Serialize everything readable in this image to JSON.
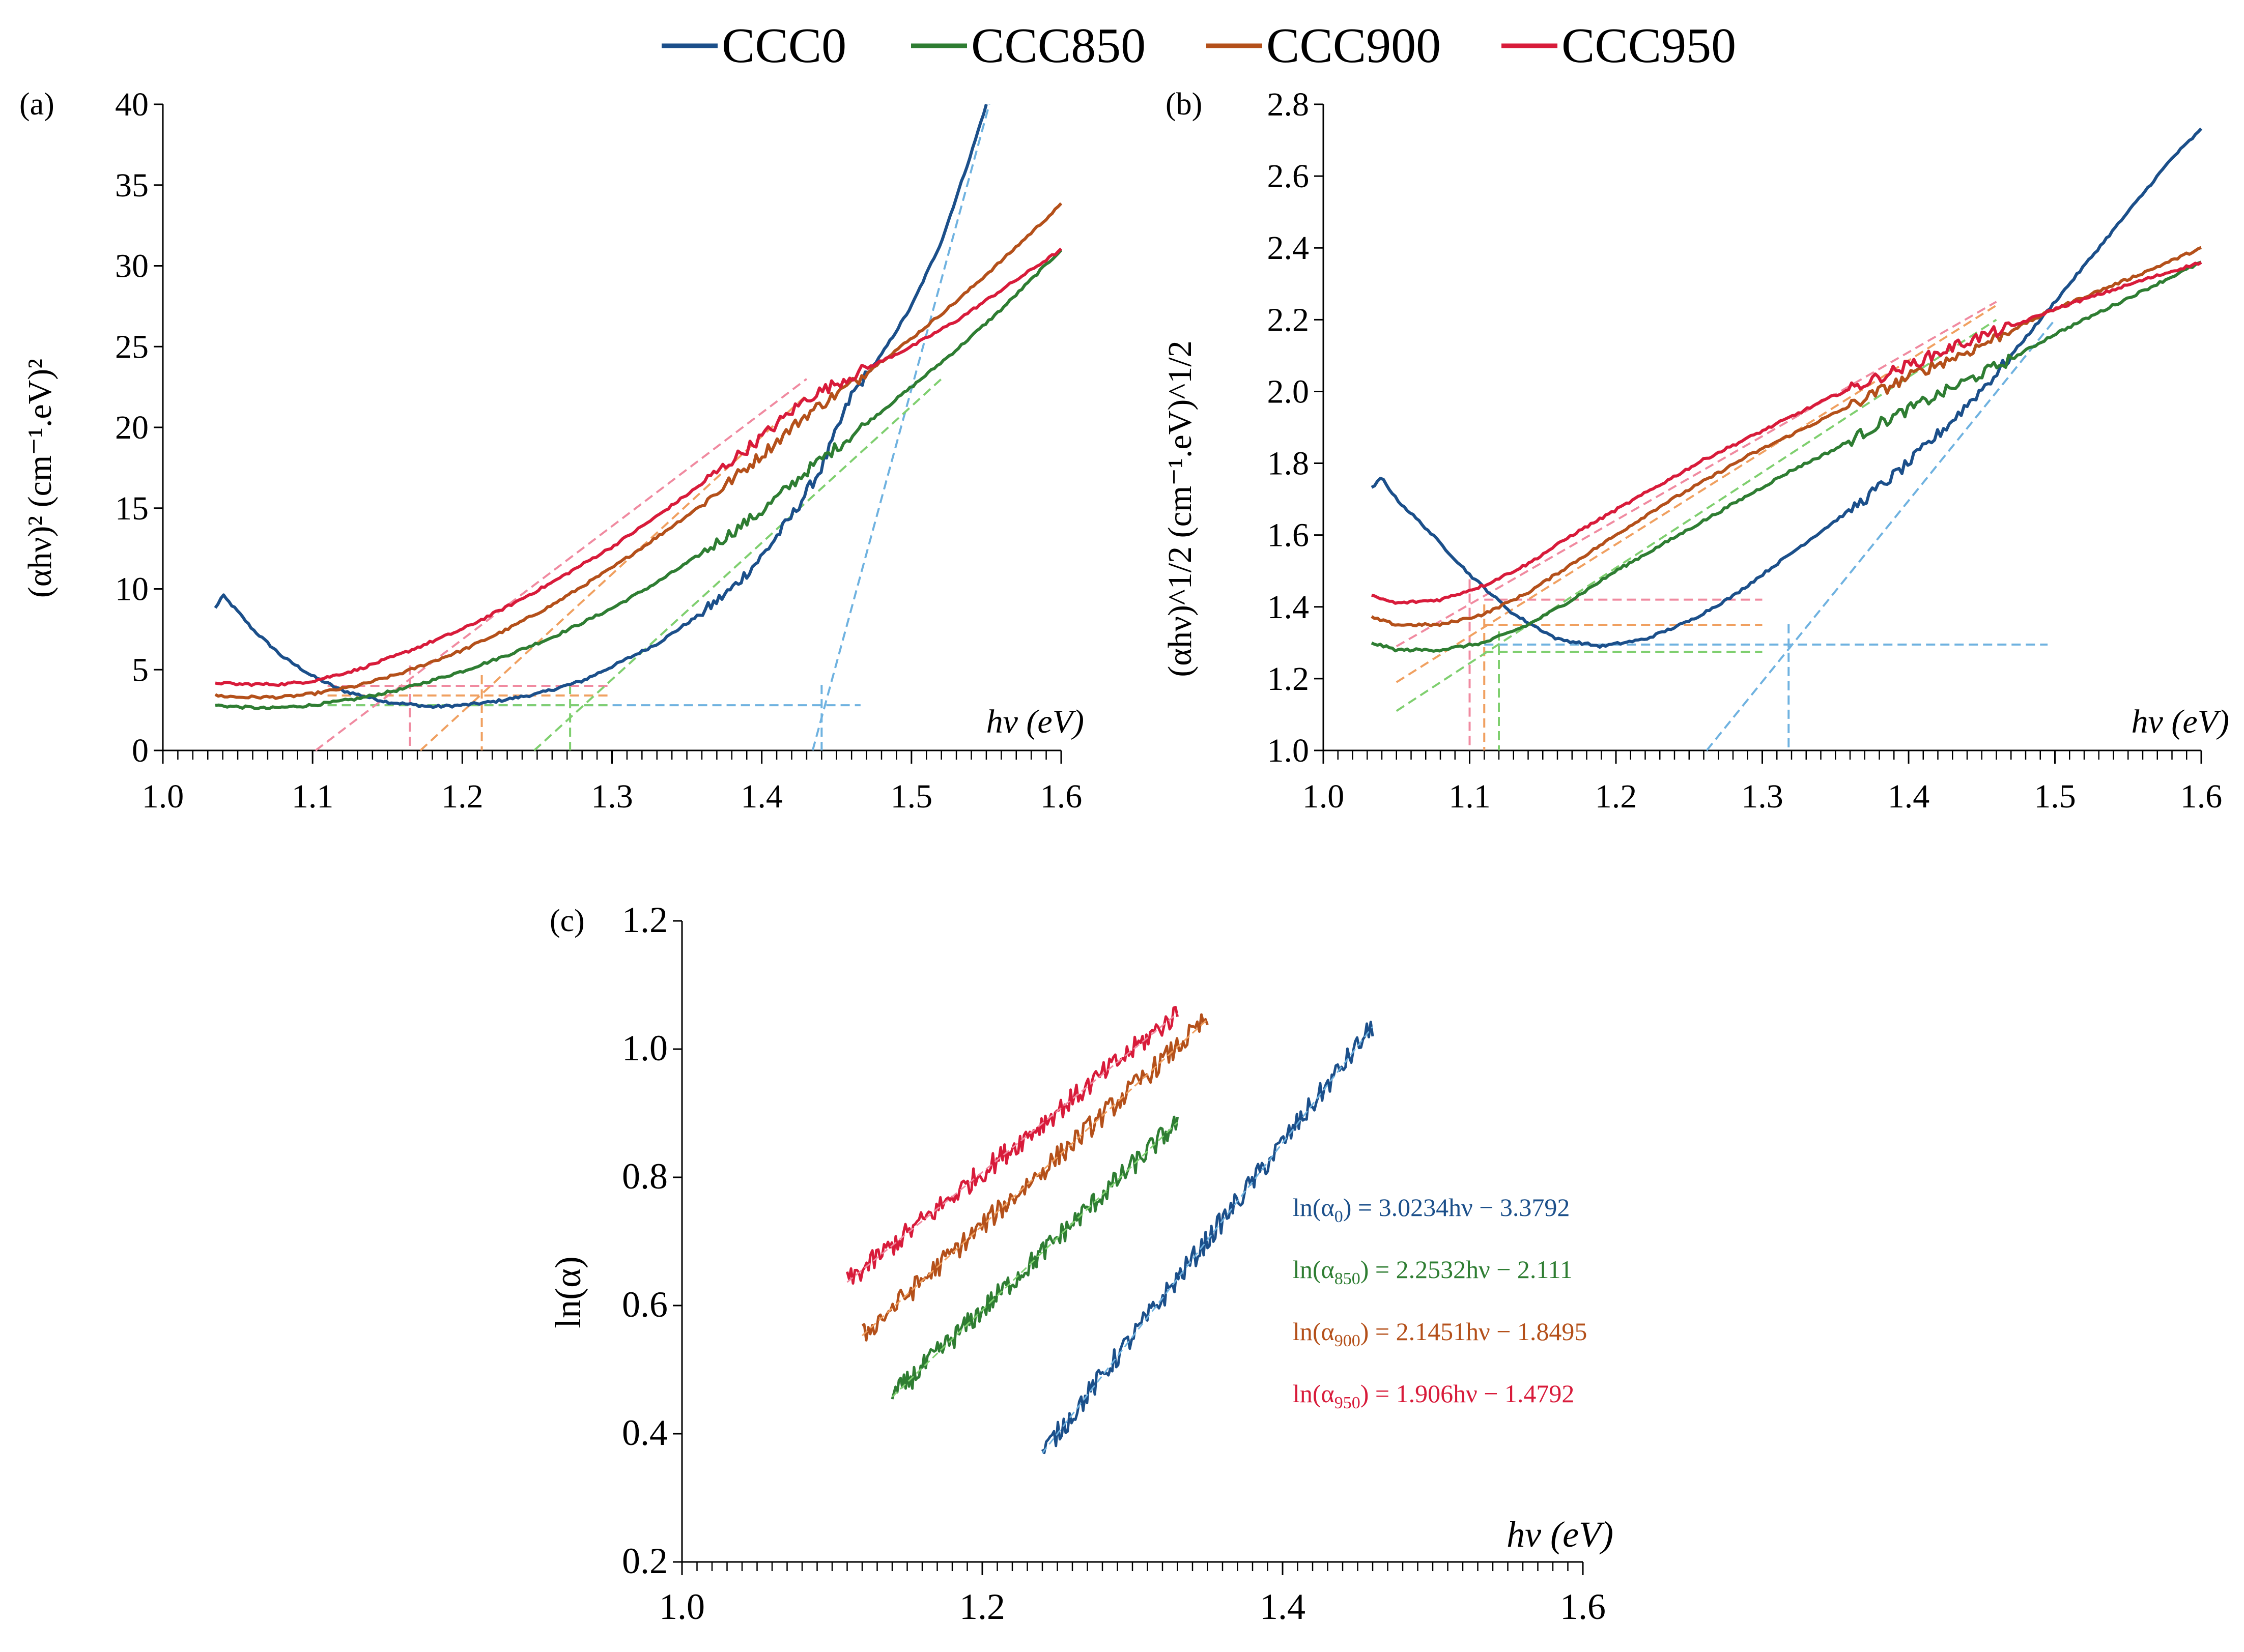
{
  "legend": {
    "entries": [
      {
        "name": "CCC0",
        "color": "#1b4f8a"
      },
      {
        "name": "CCC850",
        "color": "#2e7d32"
      },
      {
        "name": "CCC900",
        "color": "#b4501a"
      },
      {
        "name": "CCC950",
        "color": "#d81b3a"
      }
    ]
  },
  "colors": {
    "CCC0": "#1b4f8a",
    "CCC850": "#2e7d32",
    "CCC900": "#b4501a",
    "CCC950": "#d81b3a",
    "fit_CCC0": "#6fb2e0",
    "fit_CCC850": "#7fcf6f",
    "fit_CCC900": "#f0a060",
    "fit_CCC950": "#f08aa0"
  },
  "chart_data": [
    {
      "id": "a",
      "panel_label": "(a)",
      "type": "line",
      "xlabel": "hν (eV)",
      "ylabel": "(αhν)² (cm⁻¹.eV)²",
      "xlim": [
        1.0,
        1.6
      ],
      "ylim": [
        0,
        40
      ],
      "x_ticks": [
        "1.0",
        "1.1",
        "1.2",
        "1.3",
        "1.4",
        "1.5",
        "1.6"
      ],
      "x_tick_values": [
        1.0,
        1.1,
        1.2,
        1.3,
        1.4,
        1.5,
        1.6
      ],
      "y_ticks": [
        "0",
        "5",
        "10",
        "15",
        "20",
        "25",
        "30",
        "35",
        "40"
      ],
      "y_tick_values": [
        0,
        5,
        10,
        15,
        20,
        25,
        30,
        35,
        40
      ],
      "series": [
        {
          "name": "CCC0",
          "x": [
            1.035,
            1.04,
            1.05,
            1.06,
            1.08,
            1.1,
            1.12,
            1.15,
            1.18,
            1.2,
            1.22,
            1.25,
            1.28,
            1.3,
            1.33,
            1.36,
            1.38,
            1.4,
            1.42,
            1.44,
            1.46,
            1.48,
            1.5,
            1.52,
            1.54,
            1.55
          ],
          "y": [
            8.8,
            9.6,
            8.6,
            7.5,
            5.8,
            4.6,
            3.7,
            3.0,
            2.7,
            2.8,
            3.0,
            3.5,
            4.3,
            5.2,
            6.6,
            8.5,
            10.0,
            12.0,
            14.5,
            17.5,
            22.0,
            24.5,
            27.5,
            31.5,
            37.0,
            40.0
          ]
        },
        {
          "name": "CCC850",
          "x": [
            1.035,
            1.05,
            1.07,
            1.1,
            1.13,
            1.16,
            1.2,
            1.23,
            1.26,
            1.3,
            1.33,
            1.36,
            1.4,
            1.43,
            1.46,
            1.5,
            1.53,
            1.56,
            1.6
          ],
          "y": [
            2.8,
            2.7,
            2.6,
            2.8,
            3.2,
            3.8,
            4.9,
            5.9,
            7.0,
            8.8,
            10.4,
            12.2,
            14.8,
            17.3,
            19.5,
            22.5,
            24.8,
            27.3,
            31.0
          ]
        },
        {
          "name": "CCC900",
          "x": [
            1.035,
            1.05,
            1.08,
            1.1,
            1.13,
            1.16,
            1.2,
            1.23,
            1.26,
            1.3,
            1.33,
            1.36,
            1.4,
            1.43,
            1.46,
            1.5,
            1.53,
            1.56,
            1.6
          ],
          "y": [
            3.4,
            3.3,
            3.3,
            3.5,
            4.0,
            4.8,
            6.2,
            7.5,
            9.0,
            11.3,
            13.2,
            15.2,
            18.3,
            20.8,
            22.7,
            25.5,
            27.8,
            30.3,
            33.8
          ]
        },
        {
          "name": "CCC950",
          "x": [
            1.035,
            1.05,
            1.08,
            1.1,
            1.13,
            1.16,
            1.2,
            1.23,
            1.26,
            1.3,
            1.33,
            1.36,
            1.4,
            1.43,
            1.46,
            1.5,
            1.53,
            1.56,
            1.6
          ],
          "y": [
            4.2,
            4.1,
            4.1,
            4.3,
            5.0,
            6.0,
            7.5,
            8.9,
            10.4,
            12.6,
            14.5,
            16.5,
            19.4,
            21.8,
            23.2,
            25.0,
            26.6,
            28.5,
            31.0
          ]
        }
      ],
      "fit_lines": [
        {
          "name": "CCC0",
          "x": [
            1.434,
            1.552
          ],
          "y": [
            0,
            40
          ]
        },
        {
          "name": "CCC850",
          "x": [
            1.248,
            1.52
          ],
          "y": [
            0,
            23
          ]
        },
        {
          "name": "CCC900",
          "x": [
            1.172,
            1.43
          ],
          "y": [
            0,
            22
          ]
        },
        {
          "name": "CCC950",
          "x": [
            1.102,
            1.43
          ],
          "y": [
            0,
            23
          ]
        }
      ],
      "guide_lines": [
        {
          "name": "CCC0",
          "gap": 1.44,
          "level": 2.8,
          "x_end": 1.466
        },
        {
          "name": "CCC850",
          "gap": 1.272,
          "level": 2.8,
          "x_end": 1.3
        },
        {
          "name": "CCC900",
          "gap": 1.213,
          "level": 3.4,
          "x_end": 1.3
        },
        {
          "name": "CCC950",
          "gap": 1.165,
          "level": 4.0,
          "x_end": 1.3
        }
      ]
    },
    {
      "id": "b",
      "panel_label": "(b)",
      "type": "line",
      "xlabel": "hν (eV)",
      "ylabel": "(αhν)^1/2 (cm⁻¹.eV)^1/2",
      "xlim": [
        1.0,
        1.6
      ],
      "ylim": [
        1.0,
        2.8
      ],
      "x_ticks": [
        "1.0",
        "1.1",
        "1.2",
        "1.3",
        "1.4",
        "1.5",
        "1.6"
      ],
      "x_tick_values": [
        1.0,
        1.1,
        1.2,
        1.3,
        1.4,
        1.5,
        1.6
      ],
      "y_ticks": [
        "1.0",
        "1.2",
        "1.4",
        "1.6",
        "1.8",
        "2.0",
        "2.2",
        "2.4",
        "2.6",
        "2.8"
      ],
      "y_tick_values": [
        1.0,
        1.2,
        1.4,
        1.6,
        1.8,
        2.0,
        2.2,
        2.4,
        2.6,
        2.8
      ],
      "series": [
        {
          "name": "CCC0",
          "x": [
            1.033,
            1.04,
            1.05,
            1.07,
            1.1,
            1.13,
            1.16,
            1.19,
            1.22,
            1.25,
            1.28,
            1.31,
            1.34,
            1.37,
            1.4,
            1.43,
            1.46,
            1.5,
            1.54,
            1.58,
            1.6
          ],
          "y": [
            1.73,
            1.76,
            1.7,
            1.62,
            1.49,
            1.38,
            1.31,
            1.29,
            1.31,
            1.36,
            1.43,
            1.52,
            1.61,
            1.7,
            1.8,
            1.92,
            2.05,
            2.25,
            2.45,
            2.65,
            2.73
          ]
        },
        {
          "name": "CCC850",
          "x": [
            1.033,
            1.05,
            1.08,
            1.11,
            1.14,
            1.17,
            1.2,
            1.23,
            1.26,
            1.29,
            1.32,
            1.35,
            1.38,
            1.41,
            1.44,
            1.47,
            1.5,
            1.53,
            1.56,
            1.6
          ],
          "y": [
            1.3,
            1.28,
            1.28,
            1.3,
            1.35,
            1.42,
            1.5,
            1.57,
            1.64,
            1.71,
            1.78,
            1.84,
            1.91,
            1.97,
            2.03,
            2.09,
            2.16,
            2.22,
            2.28,
            2.36
          ]
        },
        {
          "name": "CCC900",
          "x": [
            1.033,
            1.05,
            1.08,
            1.11,
            1.14,
            1.17,
            1.2,
            1.23,
            1.26,
            1.29,
            1.32,
            1.35,
            1.38,
            1.41,
            1.44,
            1.47,
            1.5,
            1.53,
            1.56,
            1.6
          ],
          "y": [
            1.37,
            1.35,
            1.35,
            1.38,
            1.44,
            1.52,
            1.6,
            1.68,
            1.75,
            1.82,
            1.88,
            1.94,
            2.0,
            2.06,
            2.11,
            2.17,
            2.23,
            2.28,
            2.33,
            2.4
          ]
        },
        {
          "name": "CCC950",
          "x": [
            1.033,
            1.05,
            1.08,
            1.11,
            1.14,
            1.17,
            1.2,
            1.23,
            1.26,
            1.29,
            1.32,
            1.35,
            1.38,
            1.41,
            1.44,
            1.47,
            1.5,
            1.53,
            1.56,
            1.6
          ],
          "y": [
            1.43,
            1.41,
            1.42,
            1.46,
            1.52,
            1.6,
            1.67,
            1.74,
            1.81,
            1.87,
            1.93,
            1.99,
            2.04,
            2.09,
            2.14,
            2.18,
            2.23,
            2.27,
            2.31,
            2.36
          ]
        }
      ],
      "fit_lines": [
        {
          "name": "CCC0",
          "x": [
            1.262,
            1.5
          ],
          "y": [
            1.0,
            2.2
          ]
        },
        {
          "name": "CCC850",
          "x": [
            1.05,
            1.46
          ],
          "y": [
            1.11,
            2.2
          ]
        },
        {
          "name": "CCC900",
          "x": [
            1.05,
            1.46
          ],
          "y": [
            1.19,
            2.24
          ]
        },
        {
          "name": "CCC950",
          "x": [
            1.05,
            1.46
          ],
          "y": [
            1.29,
            2.25
          ]
        }
      ],
      "guide_lines": [
        {
          "name": "CCC0",
          "gap": 1.318,
          "level": 1.295,
          "x_end": 1.495
        },
        {
          "name": "CCC850",
          "gap": 1.12,
          "level": 1.275,
          "x_end": 1.3
        },
        {
          "name": "CCC900",
          "gap": 1.11,
          "level": 1.35,
          "x_end": 1.3
        },
        {
          "name": "CCC950",
          "gap": 1.1,
          "level": 1.42,
          "x_end": 1.3
        }
      ]
    },
    {
      "id": "c",
      "panel_label": "(c)",
      "type": "line",
      "xlabel": "hν (eV)",
      "ylabel": "ln(α)",
      "xlim": [
        1.0,
        1.6
      ],
      "ylim": [
        0.2,
        1.2
      ],
      "x_ticks": [
        "1.0",
        "1.2",
        "1.4",
        "1.6"
      ],
      "x_tick_values": [
        1.0,
        1.2,
        1.4,
        1.6
      ],
      "y_ticks": [
        "0.2",
        "0.4",
        "0.6",
        "0.8",
        "1.0",
        "1.2"
      ],
      "y_tick_values": [
        0.2,
        0.4,
        0.6,
        0.8,
        1.0,
        1.2
      ],
      "series": [
        {
          "name": "CCC0",
          "slope": 3.0234,
          "intercept": -3.3792,
          "x_range": [
            1.24,
            1.46
          ]
        },
        {
          "name": "CCC850",
          "slope": 2.2532,
          "intercept": -2.111,
          "x_range": [
            1.14,
            1.33
          ]
        },
        {
          "name": "CCC900",
          "slope": 2.1451,
          "intercept": -1.8495,
          "x_range": [
            1.12,
            1.35
          ]
        },
        {
          "name": "CCC950",
          "slope": 1.906,
          "intercept": -1.4792,
          "x_range": [
            1.11,
            1.33
          ]
        }
      ],
      "equations": [
        {
          "name": "CCC0",
          "lhs": "ln(α",
          "sub": "0",
          "rhs": ") = 3.0234hν − 3.3792"
        },
        {
          "name": "CCC850",
          "lhs": "ln(α",
          "sub": "850",
          "rhs": ") = 2.2532hν − 2.111"
        },
        {
          "name": "CCC900",
          "lhs": "ln(α",
          "sub": "900",
          "rhs": ") = 2.1451hν − 1.8495"
        },
        {
          "name": "CCC950",
          "lhs": "ln(α",
          "sub": "950",
          "rhs": ")  = 1.906hν − 1.4792"
        }
      ]
    }
  ]
}
